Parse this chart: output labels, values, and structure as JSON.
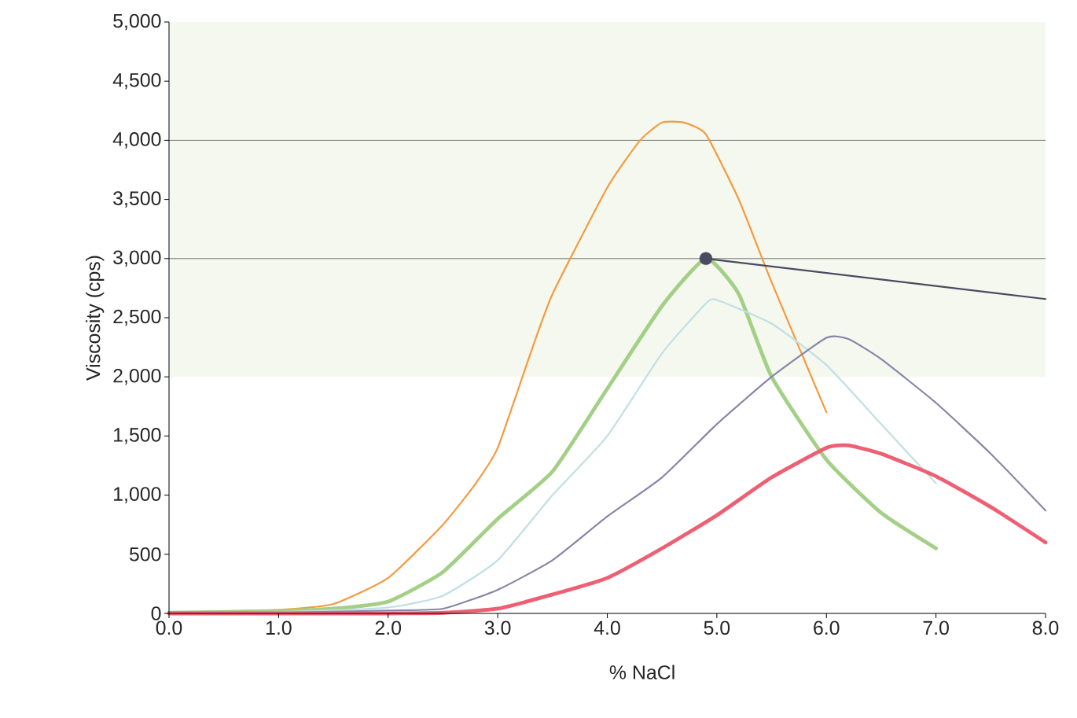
{
  "chart_data": {
    "type": "line",
    "xlabel": "% NaCl",
    "ylabel": "Viscosity (cps)",
    "xlim": [
      0,
      8
    ],
    "ylim": [
      0,
      5000
    ],
    "xticks": [
      {
        "value": 0,
        "label": "0.0"
      },
      {
        "value": 1,
        "label": "1.0"
      },
      {
        "value": 2,
        "label": "2.0"
      },
      {
        "value": 3,
        "label": "3.0"
      },
      {
        "value": 4,
        "label": "4.0"
      },
      {
        "value": 5,
        "label": "5.0"
      },
      {
        "value": 6,
        "label": "6.0"
      },
      {
        "value": 7,
        "label": "7.0"
      },
      {
        "value": 8,
        "label": "8.0"
      }
    ],
    "yticks": [
      0,
      500,
      {
        "value": 1000,
        "label": "1,000"
      },
      {
        "value": 1500,
        "label": "1,500"
      },
      {
        "value": 2000,
        "label": "2,000"
      },
      {
        "value": 2500,
        "label": "2,500"
      },
      {
        "value": 3000,
        "label": "3,000"
      },
      {
        "value": 3500,
        "label": "3,500"
      },
      {
        "value": 4000,
        "label": "4,000"
      },
      {
        "value": 4500,
        "label": "4,500"
      },
      {
        "value": 5000,
        "label": "5,000"
      }
    ],
    "bands": [
      {
        "axis": "y",
        "from": 2000,
        "to": 5000,
        "color": "#f4f8ee"
      }
    ],
    "ref_lines": [
      {
        "axis": "y",
        "value": 3000,
        "color": "#555555"
      },
      {
        "axis": "y",
        "value": 4000,
        "color": "#555555"
      }
    ],
    "series": [
      {
        "color": "#f59a3e",
        "x": [
          0,
          1,
          1.5,
          2,
          2.5,
          2.8,
          3,
          3.3,
          3.5,
          4,
          4.3,
          4.5,
          4.7,
          4.9,
          5.2,
          5.5,
          6.0
        ],
        "values": [
          10,
          30,
          80,
          300,
          750,
          1100,
          1400,
          2200,
          2700,
          3600,
          4000,
          4150,
          4150,
          4050,
          3500,
          2800,
          1700
        ]
      },
      {
        "color": "#a3cf86",
        "x": [
          0,
          1,
          1.5,
          2,
          2.5,
          3,
          3.5,
          4,
          4.5,
          4.9,
          5.2,
          5.5,
          6,
          6.5,
          7
        ],
        "values": [
          5,
          20,
          40,
          100,
          350,
          800,
          1200,
          1900,
          2600,
          3000,
          2700,
          2000,
          1300,
          850,
          550
        ]
      },
      {
        "color": "#bfe0e3",
        "x": [
          0,
          1,
          2,
          2.5,
          3,
          3.5,
          4,
          4.5,
          4.9,
          5.0,
          5.5,
          6,
          6.5,
          7
        ],
        "values": [
          0,
          10,
          50,
          150,
          450,
          1000,
          1500,
          2200,
          2620,
          2650,
          2450,
          2100,
          1600,
          1100
        ]
      },
      {
        "color": "#8785a8",
        "x": [
          0,
          1,
          2,
          2.5,
          3,
          3.5,
          4,
          4.5,
          5,
          5.5,
          6,
          6.2,
          6.5,
          7,
          7.5,
          8
        ],
        "values": [
          0,
          5,
          25,
          40,
          200,
          450,
          820,
          1150,
          1600,
          2000,
          2330,
          2320,
          2150,
          1780,
          1350,
          870
        ]
      },
      {
        "color": "#ee5f73",
        "x": [
          0,
          2,
          2.5,
          3,
          3.5,
          4,
          4.5,
          5,
          5.5,
          6,
          6.2,
          6.5,
          7,
          7.5,
          8
        ],
        "values": [
          0,
          0,
          5,
          40,
          160,
          300,
          550,
          830,
          1150,
          1400,
          1420,
          1350,
          1160,
          900,
          600
        ]
      },
      {
        "color": "#4a4a62",
        "x": [
          4.9,
          8.0
        ],
        "values": [
          3000,
          2658
        ]
      },
      {
        "type": "scatter",
        "marker": "circle",
        "color": "#4a4a62",
        "x": [
          4.9
        ],
        "values": [
          3000
        ]
      }
    ]
  }
}
